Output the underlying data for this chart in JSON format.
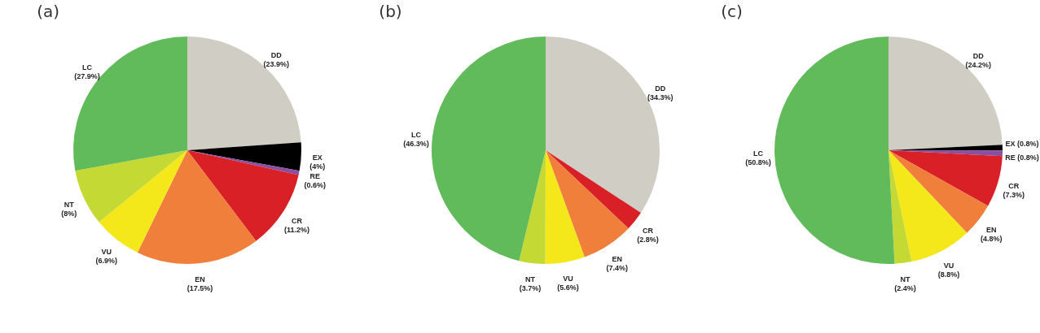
{
  "chart_data": [
    {
      "type": "pie",
      "title": "(a)",
      "categories": [
        "DD",
        "EX",
        "RE",
        "CR",
        "EN",
        "VU",
        "NT",
        "LC"
      ],
      "values": [
        23.9,
        4,
        0.6,
        11.2,
        17.5,
        6.9,
        8,
        27.9
      ],
      "value_labels": [
        "(23.9%)",
        "(4%)",
        "(0.6%)",
        "(11.2%)",
        "(17.5%)",
        "(6.9%)",
        "(8%)",
        "(27.9%)"
      ],
      "colors": [
        "#cfcdc4",
        "#000000",
        "#8a4fa0",
        "#d92027",
        "#f07f3c",
        "#f5e81a",
        "#c5d935",
        "#62bb5a"
      ]
    },
    {
      "type": "pie",
      "title": "(b)",
      "categories": [
        "DD",
        "CR",
        "EN",
        "VU",
        "NT",
        "LC"
      ],
      "values": [
        34.3,
        2.8,
        7.4,
        5.6,
        3.7,
        46.3
      ],
      "value_labels": [
        "(34.3%)",
        "(2.8%)",
        "(7.4%)",
        "(5.6%)",
        "(3.7%)",
        "(46.3%)"
      ],
      "colors": [
        "#cfcdc4",
        "#d92027",
        "#f07f3c",
        "#f5e81a",
        "#c5d935",
        "#62bb5a"
      ]
    },
    {
      "type": "pie",
      "title": "(c)",
      "categories": [
        "DD",
        "EX",
        "RE",
        "CR",
        "EN",
        "VU",
        "NT",
        "LC"
      ],
      "values": [
        24.2,
        0.8,
        0.8,
        7.3,
        4.8,
        8.8,
        2.4,
        50.8
      ],
      "value_labels": [
        "(24.2%)",
        "(0.8%)",
        "(0.8%)",
        "(7.3%)",
        "(4.8%)",
        "(8.8%)",
        "(2.4%)",
        "(50.8%)"
      ],
      "colors": [
        "#cfcdc4",
        "#000000",
        "#8a4fa0",
        "#d92027",
        "#f07f3c",
        "#f5e81a",
        "#c5d935",
        "#62bb5a"
      ]
    }
  ]
}
